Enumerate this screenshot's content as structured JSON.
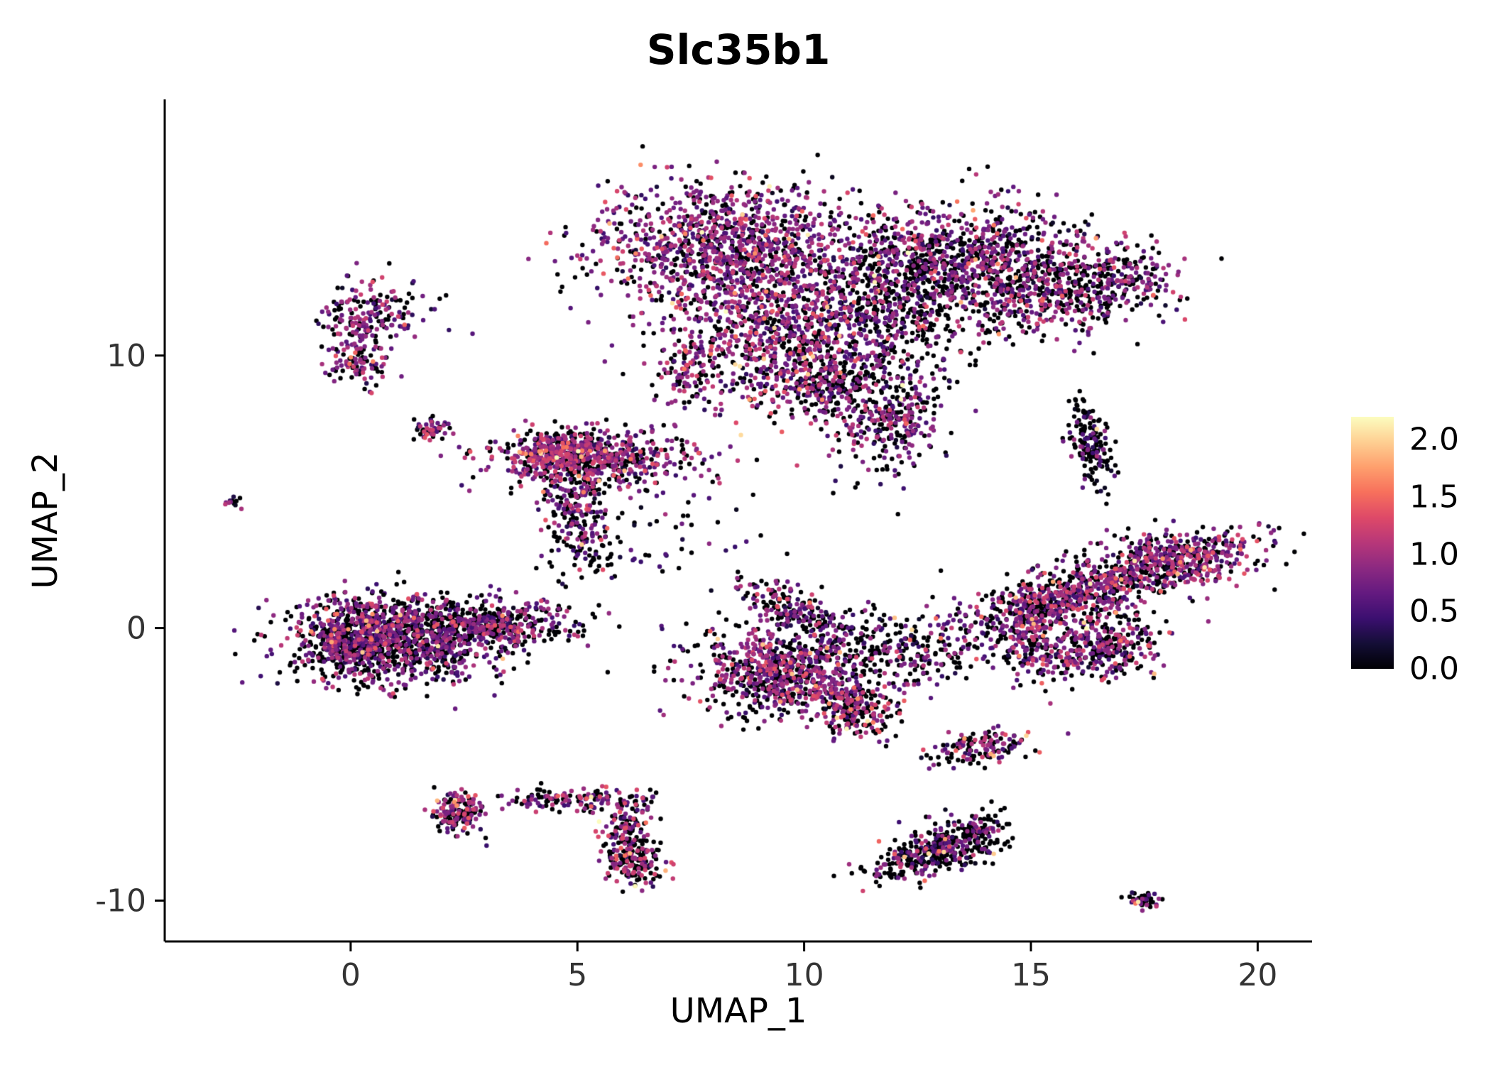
{
  "chart_data": {
    "type": "scatter",
    "title": "Slc35b1",
    "xlabel": "UMAP_1",
    "ylabel": "UMAP_2",
    "xlim": [
      -4.1,
      21.2
    ],
    "ylim": [
      -11.5,
      19.4
    ],
    "grid": false,
    "legend_position": "right",
    "point_radius": 3.2,
    "seed": 20240613,
    "x_ticks": [
      {
        "v": 0,
        "label": "0"
      },
      {
        "v": 5,
        "label": "5"
      },
      {
        "v": 10,
        "label": "10"
      },
      {
        "v": 15,
        "label": "15"
      },
      {
        "v": 20,
        "label": "20"
      }
    ],
    "y_ticks": [
      {
        "v": -10,
        "label": "-10"
      },
      {
        "v": 0,
        "label": "0"
      },
      {
        "v": 10,
        "label": "10"
      }
    ],
    "colormap_name": "magma",
    "colormap": [
      "#000004",
      "#140e36",
      "#3b0f70",
      "#641a80",
      "#8c2981",
      "#b73779",
      "#de4968",
      "#f7705c",
      "#fe9f6d",
      "#fecf92",
      "#fcfdbf"
    ],
    "colorbar": {
      "domain": [
        0,
        2.2
      ],
      "ticks": [
        {
          "v": 2.0,
          "label": "2.0"
        },
        {
          "v": 1.5,
          "label": "1.5"
        },
        {
          "v": 1.0,
          "label": "1.0"
        },
        {
          "v": 0.5,
          "label": "0.5"
        },
        {
          "v": 0.0,
          "label": "0.0"
        }
      ]
    },
    "clusters": [
      {
        "name": "top-main-left",
        "cx": 8.3,
        "cy": 14.0,
        "sx": 1.4,
        "sy": 1.1,
        "n": 1100,
        "angle": 0,
        "p0": 0.3,
        "mu": 0.82,
        "hot": 0.02
      },
      {
        "name": "top-lower-left",
        "cx": 9.4,
        "cy": 10.8,
        "sx": 1.2,
        "sy": 1.4,
        "n": 850,
        "angle": 0,
        "p0": 0.33,
        "mu": 0.85,
        "hot": 0.03
      },
      {
        "name": "top-main-right",
        "cx": 13.4,
        "cy": 13.4,
        "sx": 1.5,
        "sy": 1.1,
        "n": 1000,
        "angle": 0,
        "p0": 0.46,
        "mu": 0.78,
        "hot": 0.02
      },
      {
        "name": "top-right-inner",
        "cx": 15.3,
        "cy": 12.3,
        "sx": 1.0,
        "sy": 0.9,
        "n": 350,
        "angle": 0,
        "p0": 0.46,
        "mu": 0.8,
        "hot": 0.02
      },
      {
        "name": "top-valley",
        "cx": 11.8,
        "cy": 11.5,
        "sx": 0.9,
        "sy": 1.3,
        "n": 400,
        "angle": 0,
        "p0": 0.58,
        "mu": 0.72,
        "hot": 0.01
      },
      {
        "name": "top-bottom-tail",
        "cx": 11.9,
        "cy": 7.6,
        "sx": 0.65,
        "sy": 0.6,
        "n": 230,
        "angle": 0,
        "p0": 0.42,
        "mu": 0.82,
        "hot": 0.02
      },
      {
        "name": "top-right-tip",
        "cx": 16.9,
        "cy": 12.8,
        "sx": 0.7,
        "sy": 0.7,
        "n": 200,
        "angle": 0,
        "p0": 0.48,
        "mu": 0.78,
        "hot": 0.02
      },
      {
        "name": "top-bridge",
        "cx": 10.3,
        "cy": 8.7,
        "sx": 0.7,
        "sy": 0.6,
        "n": 120,
        "angle": 0,
        "p0": 0.5,
        "mu": 0.75,
        "hot": 0.02
      },
      {
        "name": "top-left-spur",
        "cx": 7.4,
        "cy": 9.4,
        "sx": 0.3,
        "sy": 0.7,
        "n": 90,
        "angle": 0,
        "p0": 0.4,
        "mu": 0.9,
        "hot": 0.05
      },
      {
        "name": "top-sparse-below",
        "cx": 11.2,
        "cy": 9.4,
        "sx": 0.9,
        "sy": 0.7,
        "n": 150,
        "angle": 0,
        "p0": 0.6,
        "mu": 0.7,
        "hot": 0.01
      },
      {
        "name": "left-upper",
        "cx": 0.35,
        "cy": 11.2,
        "sx": 0.5,
        "sy": 0.8,
        "n": 200,
        "angle": 0,
        "p0": 0.4,
        "mu": 0.8,
        "hot": 0.02
      },
      {
        "name": "left-upper-bottom",
        "cx": 0.15,
        "cy": 9.7,
        "sx": 0.3,
        "sy": 0.4,
        "n": 70,
        "angle": 0,
        "p0": 0.42,
        "mu": 0.85,
        "hot": 0.06
      },
      {
        "name": "tiny-mid-left",
        "cx": 1.8,
        "cy": 7.3,
        "sx": 0.25,
        "sy": 0.25,
        "n": 50,
        "angle": 0,
        "p0": 0.35,
        "mu": 0.9,
        "hot": 0.05
      },
      {
        "name": "tiny-far-left",
        "cx": -2.6,
        "cy": 4.6,
        "sx": 0.12,
        "sy": 0.12,
        "n": 12,
        "angle": 0,
        "p0": 0.5,
        "mu": 0.7,
        "hot": 0
      },
      {
        "name": "mid-left-main",
        "cx": 5.2,
        "cy": 6.2,
        "sx": 1.1,
        "sy": 0.55,
        "n": 600,
        "angle": 0,
        "p0": 0.36,
        "mu": 0.88,
        "hot": 0.03
      },
      {
        "name": "mid-left-core",
        "cx": 4.7,
        "cy": 6.5,
        "sx": 0.5,
        "sy": 0.35,
        "n": 200,
        "angle": 0,
        "p0": 0.34,
        "mu": 0.92,
        "hot": 0.04
      },
      {
        "name": "mid-left-tail",
        "cx": 4.9,
        "cy": 4.6,
        "sx": 0.35,
        "sy": 0.75,
        "n": 160,
        "angle": 0,
        "p0": 0.45,
        "mu": 0.8,
        "hot": 0.02
      },
      {
        "name": "mid-left-drip",
        "cx": 5.2,
        "cy": 3.1,
        "sx": 0.45,
        "sy": 0.7,
        "n": 70,
        "angle": 0,
        "p0": 0.6,
        "mu": 0.65,
        "hot": 0.01
      },
      {
        "name": "left-lower-main",
        "cx": 1.0,
        "cy": -0.4,
        "sx": 1.2,
        "sy": 0.8,
        "n": 1200,
        "angle": 0,
        "p0": 0.48,
        "mu": 0.76,
        "hot": 0.025
      },
      {
        "name": "left-lower-core",
        "cx": 0.1,
        "cy": -0.5,
        "sx": 0.55,
        "sy": 0.55,
        "n": 250,
        "angle": 0,
        "p0": 0.46,
        "mu": 0.8,
        "hot": 0.03
      },
      {
        "name": "left-lower-tip",
        "cx": 3.2,
        "cy": 0.1,
        "sx": 0.9,
        "sy": 0.45,
        "n": 350,
        "angle": 10,
        "p0": 0.46,
        "mu": 0.8,
        "hot": 0.02
      },
      {
        "name": "center-low-main",
        "cx": 9.6,
        "cy": -1.6,
        "sx": 0.95,
        "sy": 0.75,
        "n": 700,
        "angle": 0,
        "p0": 0.42,
        "mu": 0.85,
        "hot": 0.03
      },
      {
        "name": "center-low-tail",
        "cx": 11.0,
        "cy": -2.9,
        "sx": 0.6,
        "sy": 0.45,
        "n": 250,
        "angle": -50,
        "p0": 0.4,
        "mu": 0.9,
        "hot": 0.04
      },
      {
        "name": "center-low-arm",
        "cx": 9.8,
        "cy": 0.7,
        "sx": 0.75,
        "sy": 0.3,
        "n": 200,
        "angle": -40,
        "p0": 0.5,
        "mu": 0.75,
        "hot": 0.02
      },
      {
        "name": "center-sparse",
        "cx": 12.1,
        "cy": -0.7,
        "sx": 1.0,
        "sy": 0.8,
        "n": 250,
        "angle": 0,
        "p0": 0.56,
        "mu": 0.7,
        "hot": 0.01
      },
      {
        "name": "right-band",
        "cx": 16.4,
        "cy": 1.5,
        "sx": 1.7,
        "sy": 0.5,
        "n": 850,
        "angle": 28,
        "p0": 0.4,
        "mu": 0.85,
        "hot": 0.025
      },
      {
        "name": "right-band-head",
        "cx": 18.4,
        "cy": 2.6,
        "sx": 0.8,
        "sy": 0.6,
        "n": 250,
        "angle": 0,
        "p0": 0.38,
        "mu": 0.9,
        "hot": 0.03
      },
      {
        "name": "right-low-blob",
        "cx": 15.6,
        "cy": -0.9,
        "sx": 0.9,
        "sy": 0.55,
        "n": 300,
        "angle": 0,
        "p0": 0.44,
        "mu": 0.8,
        "hot": 0.02
      },
      {
        "name": "right-loop",
        "cx": 16.9,
        "cy": -0.5,
        "sx": 0.45,
        "sy": 0.55,
        "n": 150,
        "angle": 0,
        "p0": 0.42,
        "mu": 0.85,
        "hot": 0.02
      },
      {
        "name": "right-connector",
        "cx": 14.8,
        "cy": 0.3,
        "sx": 0.5,
        "sy": 0.6,
        "n": 100,
        "angle": 0,
        "p0": 0.5,
        "mu": 0.78,
        "hot": 0.02
      },
      {
        "name": "right-small",
        "cx": 16.3,
        "cy": 6.8,
        "sx": 0.2,
        "sy": 0.8,
        "n": 160,
        "angle": 8,
        "p0": 0.66,
        "mu": 0.6,
        "hot": 0.01
      },
      {
        "name": "small-below-band",
        "cx": 13.9,
        "cy": -4.4,
        "sx": 0.55,
        "sy": 0.3,
        "n": 140,
        "angle": 18,
        "p0": 0.5,
        "mu": 0.8,
        "hot": 0.04
      },
      {
        "name": "bottom-left-blob",
        "cx": 2.4,
        "cy": -6.8,
        "sx": 0.3,
        "sy": 0.38,
        "n": 170,
        "angle": 0,
        "p0": 0.44,
        "mu": 0.85,
        "hot": 0.05
      },
      {
        "name": "bottom-arc-top",
        "cx": 4.8,
        "cy": -6.3,
        "sx": 0.8,
        "sy": 0.22,
        "n": 130,
        "angle": 0,
        "p0": 0.42,
        "mu": 0.88,
        "hot": 0.02
      },
      {
        "name": "bottom-arc-side",
        "cx": 6.1,
        "cy": -7.3,
        "sx": 0.22,
        "sy": 0.65,
        "n": 120,
        "angle": -12,
        "p0": 0.45,
        "mu": 0.85,
        "hot": 0.02
      },
      {
        "name": "bottom-arc-end",
        "cx": 6.3,
        "cy": -8.6,
        "sx": 0.32,
        "sy": 0.45,
        "n": 160,
        "angle": 0,
        "p0": 0.48,
        "mu": 0.85,
        "hot": 0.04
      },
      {
        "name": "bottom-mid",
        "cx": 12.9,
        "cy": -8.2,
        "sx": 0.75,
        "sy": 0.4,
        "n": 380,
        "angle": 30,
        "p0": 0.62,
        "mu": 0.7,
        "hot": 0.03
      },
      {
        "name": "bottom-mid-tip",
        "cx": 13.9,
        "cy": -7.3,
        "sx": 0.3,
        "sy": 0.25,
        "n": 60,
        "angle": 0,
        "p0": 0.5,
        "mu": 0.78,
        "hot": 0.02
      },
      {
        "name": "tiny-bottom-right",
        "cx": 17.5,
        "cy": -10.0,
        "sx": 0.25,
        "sy": 0.13,
        "n": 45,
        "angle": -15,
        "p0": 0.55,
        "mu": 0.7,
        "hot": 0.06
      },
      {
        "name": "stray-mid",
        "cx": 6.1,
        "cy": 2.9,
        "sx": 0.9,
        "sy": 1.0,
        "n": 35,
        "angle": 0,
        "p0": 0.6,
        "mu": 0.6,
        "hot": 0
      },
      {
        "name": "stray-center",
        "cx": 7.7,
        "cy": -1.1,
        "sx": 0.8,
        "sy": 0.9,
        "n": 25,
        "angle": 0,
        "p0": 0.6,
        "mu": 0.6,
        "hot": 0
      },
      {
        "name": "stray-under-top",
        "cx": 11.7,
        "cy": 5.7,
        "sx": 0.6,
        "sy": 0.7,
        "n": 30,
        "angle": 0,
        "p0": 0.55,
        "mu": 0.65,
        "hot": 0
      },
      {
        "name": "stray-left-upper",
        "cx": 1.5,
        "cy": 11.5,
        "sx": 0.6,
        "sy": 0.5,
        "n": 14,
        "angle": 0,
        "p0": 0.5,
        "mu": 0.7,
        "hot": 0
      },
      {
        "name": "stray-between",
        "cx": 7.9,
        "cy": 4.0,
        "sx": 0.7,
        "sy": 0.9,
        "n": 25,
        "angle": 0,
        "p0": 0.6,
        "mu": 0.6,
        "hot": 0
      }
    ]
  }
}
